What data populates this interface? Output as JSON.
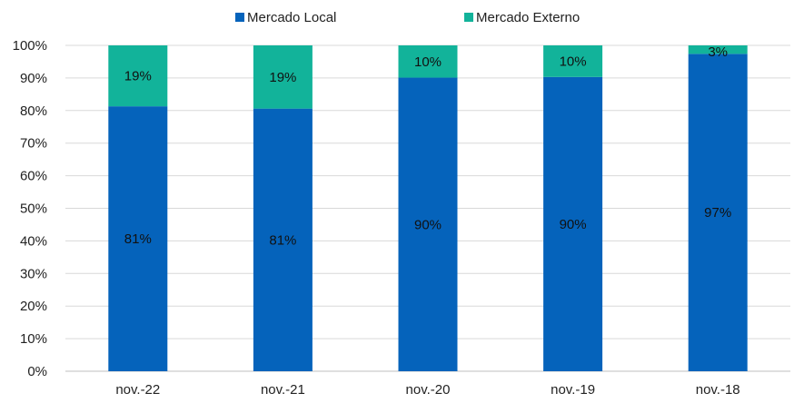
{
  "chart_data": {
    "type": "bar",
    "stacked": true,
    "percent_stacked": true,
    "categories": [
      "nov.-22",
      "nov.-21",
      "nov.-20",
      "nov.-19",
      "nov.-18"
    ],
    "series": [
      {
        "name": "Mercado Local",
        "color": "#0563bb",
        "values": [
          81.3,
          80.6,
          90.1,
          90.3,
          97.4
        ],
        "labels": [
          "81%",
          "81%",
          "90%",
          "90%",
          "97%"
        ]
      },
      {
        "name": "Mercado Externo",
        "color": "#12b39a",
        "values": [
          18.7,
          19.4,
          9.9,
          9.7,
          2.6
        ],
        "labels": [
          "19%",
          "19%",
          "10%",
          "10%",
          "3%"
        ]
      }
    ],
    "ylim": [
      0,
      100
    ],
    "y_ticks": [
      "0%",
      "10%",
      "20%",
      "30%",
      "40%",
      "50%",
      "60%",
      "70%",
      "80%",
      "90%",
      "100%"
    ],
    "grid": true,
    "legend_position": "top-center",
    "gridline_color": "#d9d9d9"
  }
}
